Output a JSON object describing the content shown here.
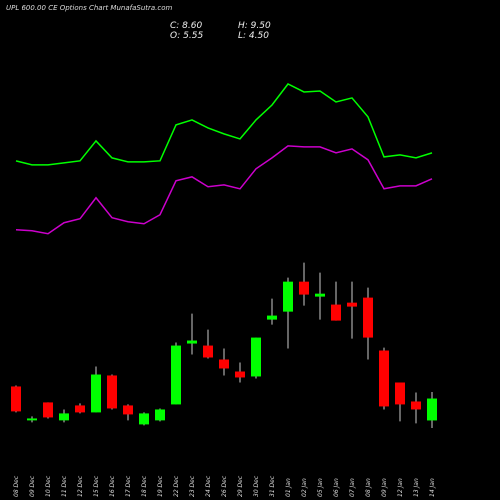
{
  "chart_data": {
    "type": "candlestick",
    "title": "UPL 600.00 CE Options Chart MunafaSutra.com",
    "summary": [
      "C: 8.60",
      "H: 9.50",
      "O: 5.55",
      "L: 4.50"
    ],
    "categories": [
      "08 Dec",
      "09 Dec",
      "10 Dec",
      "11 Dec",
      "12 Dec",
      "15 Dec",
      "16 Dec",
      "17 Dec",
      "18 Dec",
      "19 Dec",
      "22 Dec",
      "23 Dec",
      "24 Dec",
      "26 Dec",
      "29 Dec",
      "30 Dec",
      "31 Dec",
      "01 Jan",
      "02 Jan",
      "05 Jan",
      "06 Jan",
      "07 Jan",
      "08 Jan",
      "09 Jan",
      "12 Jan",
      "13 Jan",
      "14 Jan"
    ],
    "open": [
      10.28,
      5.56,
      8.06,
      5.56,
      7.64,
      6.67,
      11.81,
      7.64,
      5.0,
      5.56,
      7.78,
      16.25,
      15.97,
      14.03,
      12.36,
      11.67,
      19.58,
      20.69,
      24.86,
      22.78,
      21.67,
      21.94,
      22.64,
      15.28,
      10.83,
      8.19,
      5.55
    ],
    "close": [
      6.81,
      5.83,
      5.97,
      6.53,
      6.67,
      11.94,
      7.22,
      6.39,
      6.53,
      7.08,
      15.97,
      16.67,
      14.31,
      12.78,
      11.53,
      17.08,
      20.14,
      24.86,
      23.06,
      23.19,
      19.44,
      21.39,
      17.08,
      7.5,
      7.78,
      7.08,
      8.6
    ],
    "high": [
      10.42,
      6.11,
      8.06,
      7.08,
      7.92,
      13.06,
      11.94,
      7.78,
      6.67,
      7.22,
      16.39,
      20.42,
      18.19,
      15.56,
      13.61,
      17.08,
      22.5,
      25.42,
      27.5,
      26.11,
      24.86,
      24.86,
      24.03,
      15.69,
      10.83,
      9.44,
      9.5
    ],
    "low": [
      6.67,
      5.28,
      5.83,
      5.28,
      6.53,
      6.67,
      7.08,
      5.56,
      4.86,
      5.42,
      7.78,
      14.72,
      14.17,
      11.81,
      10.83,
      11.39,
      18.89,
      15.56,
      21.53,
      19.58,
      19.44,
      16.94,
      14.03,
      7.08,
      5.42,
      5.14,
      4.5
    ],
    "up_color": "#00ff00",
    "down_color": "#ff0000",
    "lines": [
      {
        "color": "#00ff00",
        "values": [
          41.67,
          41.11,
          41.11,
          41.39,
          41.67,
          44.44,
          42.08,
          41.53,
          41.53,
          41.67,
          46.67,
          47.36,
          46.25,
          45.42,
          44.72,
          47.36,
          49.44,
          52.36,
          51.25,
          51.39,
          49.86,
          50.42,
          47.78,
          42.22,
          42.5,
          42.08,
          42.78
        ]
      },
      {
        "color": "#cc00cc",
        "values": [
          32.08,
          31.94,
          31.53,
          33.06,
          33.61,
          36.53,
          33.75,
          33.19,
          32.92,
          34.17,
          38.89,
          39.44,
          38.06,
          38.33,
          37.78,
          40.56,
          42.08,
          43.75,
          43.61,
          43.61,
          42.78,
          43.33,
          41.81,
          37.78,
          38.19,
          38.19,
          39.17
        ]
      }
    ]
  }
}
